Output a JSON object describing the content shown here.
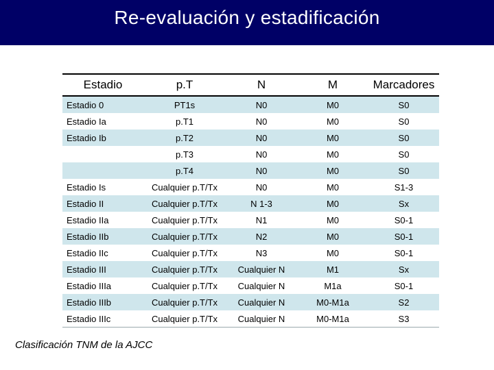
{
  "title": "Re-evaluación y estadificación",
  "table": {
    "headers": [
      "Estadio",
      "p.T",
      "N",
      "M",
      "Marcadores"
    ],
    "rows": [
      [
        "Estadio 0",
        "PT1s",
        "N0",
        "M0",
        "S0"
      ],
      [
        "Estadio Ia",
        "p.T1",
        "N0",
        "M0",
        "S0"
      ],
      [
        "Estadio Ib",
        "p.T2",
        "N0",
        "M0",
        "S0"
      ],
      [
        "",
        "p.T3",
        "N0",
        "M0",
        "S0"
      ],
      [
        "",
        "p.T4",
        "N0",
        "M0",
        "S0"
      ],
      [
        "Estadio Is",
        "Cualquier p.T/Tx",
        "N0",
        "M0",
        "S1-3"
      ],
      [
        "Estadio II",
        "Cualquier p.T/Tx",
        "N 1-3",
        "M0",
        "Sx"
      ],
      [
        "Estadio IIa",
        "Cualquier p.T/Tx",
        "N1",
        "M0",
        "S0-1"
      ],
      [
        "Estadio IIb",
        "Cualquier p.T/Tx",
        "N2",
        "M0",
        "S0-1"
      ],
      [
        "Estadio IIc",
        "Cualquier p.T/Tx",
        "N3",
        "M0",
        "S0-1"
      ],
      [
        "Estadio III",
        "Cualquier p.T/Tx",
        "Cualquier N",
        "M1",
        "Sx"
      ],
      [
        "Estadio IIIa",
        "Cualquier p.T/Tx",
        "Cualquier N",
        "M1a",
        "S0-1"
      ],
      [
        "Estadio IIIb",
        "Cualquier p.T/Tx",
        "Cualquier N",
        "M0-M1a",
        "S2"
      ],
      [
        "Estadio IIIc",
        "Cualquier p.T/Tx",
        "Cualquier N",
        "M0-M1a",
        "S3"
      ]
    ]
  },
  "footer": "Clasificación TNM de la AJCC"
}
